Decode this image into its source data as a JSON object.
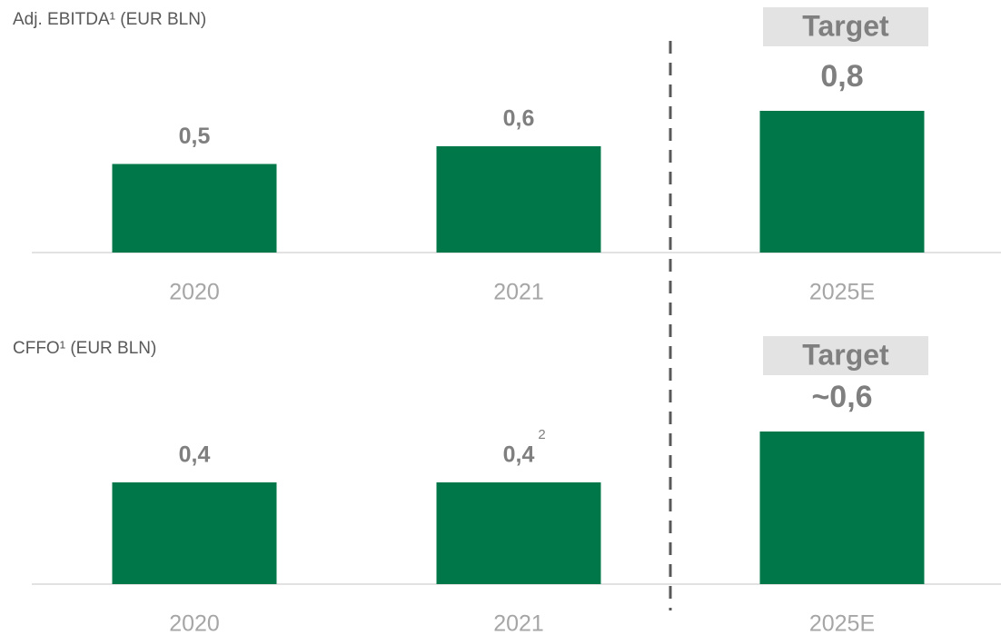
{
  "chart_data": [
    {
      "type": "bar",
      "title": "Adj. EBITDA¹ (EUR BLN)",
      "categories": [
        "2020",
        "2021",
        "2025E"
      ],
      "values": [
        0.5,
        0.6,
        0.8
      ],
      "value_labels": [
        "0,5",
        "0,6",
        "0,8"
      ],
      "label_notes": [
        null,
        null,
        null
      ],
      "highlight": "Target",
      "color": "#007749"
    },
    {
      "type": "bar",
      "title": "CFFO¹ (EUR BLN)",
      "categories": [
        "2020",
        "2021",
        "2025E"
      ],
      "values": [
        0.4,
        0.4,
        0.6
      ],
      "value_labels": [
        "0,4",
        "0,4",
        "~0,6"
      ],
      "label_notes": [
        null,
        "2",
        null
      ],
      "highlight": "Target",
      "color": "#007749"
    }
  ]
}
